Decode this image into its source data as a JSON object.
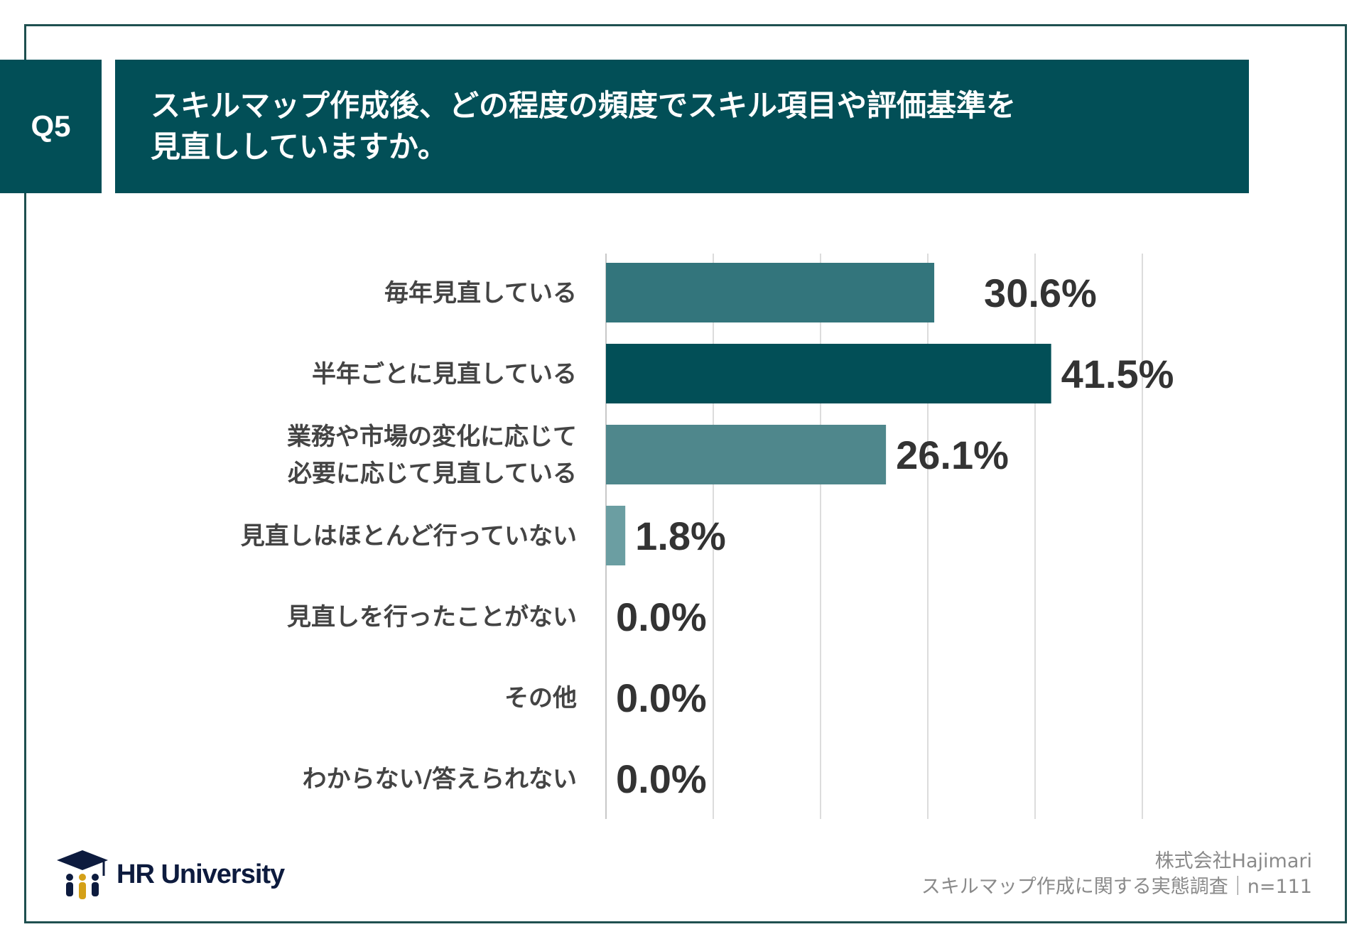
{
  "header": {
    "question_id": "Q5",
    "title_lines": [
      "スキルマップ作成後、どの程度の頻度でスキル項目や評価基準を",
      "見直ししていますか。"
    ]
  },
  "chart_data": {
    "type": "bar",
    "orientation": "horizontal",
    "categories": [
      [
        "毎年見直している"
      ],
      [
        "半年ごとに見直している"
      ],
      [
        "業務や市場の変化に応じて",
        "必要に応じて見直している"
      ],
      [
        "見直しはほとんど行っていない"
      ],
      [
        "見直しを行ったことがない"
      ],
      [
        "その他"
      ],
      [
        "わからない/答えられない"
      ]
    ],
    "values": [
      30.6,
      41.5,
      26.1,
      1.8,
      0.0,
      0.0,
      0.0
    ],
    "value_labels": [
      "30.6%",
      "41.5%",
      "26.1%",
      "1.8%",
      "0.0%",
      "0.0%",
      "0.0%"
    ],
    "bar_colors": [
      "#33757c",
      "#024f57",
      "#4f878c",
      "#6b9ea2",
      "#6b9ea2",
      "#6b9ea2",
      "#6b9ea2"
    ],
    "xlim": [
      0,
      50
    ],
    "grid_step": 10,
    "grid": true,
    "unit": "%"
  },
  "footer": {
    "logo_text": "HR University",
    "source_lines": [
      "株式会社Hajimari",
      "スキルマップ作成に関する実態調査｜n=111"
    ]
  }
}
